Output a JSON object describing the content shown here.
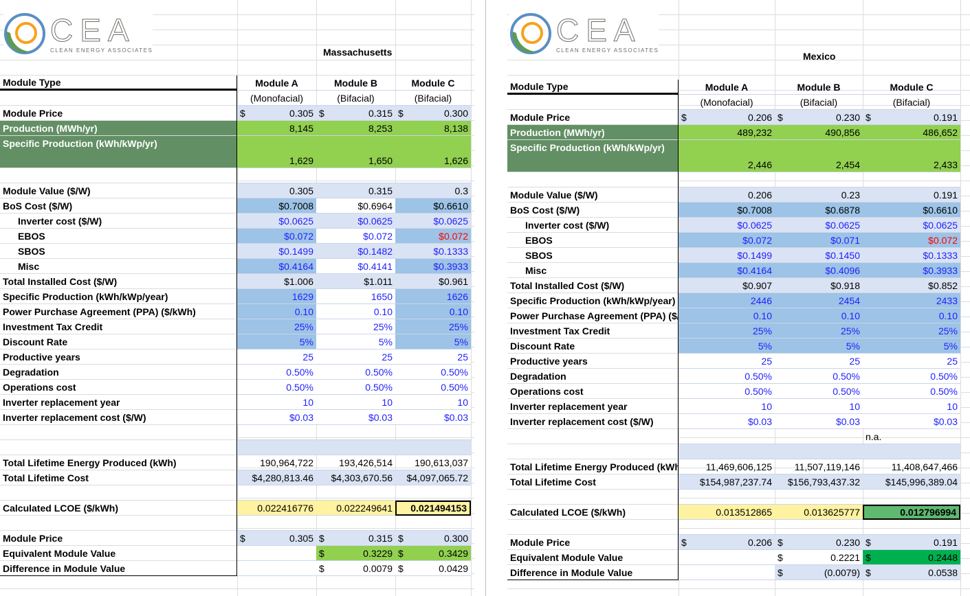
{
  "logo": {
    "name": "CEA",
    "tagline": "Clean Energy Associates"
  },
  "colors": {
    "light_blue": "#dae3f3",
    "mid_blue": "#9dc3e6",
    "green": "#92d050",
    "dark_green_label": "#628f64",
    "yellow": "#fff2a0",
    "best_lcoe_green": "#5fb96f",
    "bright_green": "#00b050",
    "input_blue_text": "#1f1fff",
    "red_text": "#ff0000"
  },
  "panels": [
    {
      "region": "Massachusetts",
      "rows": [
        {
          "label": "Module Type",
          "values": [
            "Module A",
            "Module B",
            "Module C"
          ]
        },
        {
          "label": "",
          "values": [
            "(Monofacial)",
            "(Bifacial)",
            "(Bifacial)"
          ]
        },
        {
          "label": "Module Price",
          "currency": "$",
          "values": [
            "0.305",
            "0.315",
            "0.300"
          ]
        },
        {
          "label": "Production (MWh/yr)",
          "values": [
            "8,145",
            "8,253",
            "8,138"
          ]
        },
        {
          "label": "Specific Production (kWh/kWp/yr)",
          "values": [
            "1,629",
            "1,650",
            "1,626"
          ]
        },
        {
          "label": "",
          "values": [
            "",
            "",
            ""
          ]
        },
        {
          "label": "Module Value ($/W)",
          "values": [
            "0.305",
            "0.315",
            "0.3"
          ]
        },
        {
          "label": "BoS Cost ($/W)",
          "values": [
            "$0.7008",
            "$0.6964",
            "$0.6610"
          ]
        },
        {
          "label": "Inverter cost ($/W)",
          "values": [
            "$0.0625",
            "$0.0625",
            "$0.0625"
          ]
        },
        {
          "label": "EBOS",
          "values": [
            "$0.072",
            "$0.072",
            "$0.072"
          ]
        },
        {
          "label": "SBOS",
          "values": [
            "$0.1499",
            "$0.1482",
            "$0.1333"
          ]
        },
        {
          "label": "Misc",
          "values": [
            "$0.4164",
            "$0.4141",
            "$0.3933"
          ]
        },
        {
          "label": "Total Installed Cost ($/W)",
          "values": [
            "$1.006",
            "$1.011",
            "$0.961"
          ]
        },
        {
          "label": "Specific Production (kWh/kWp/year)",
          "values": [
            "1629",
            "1650",
            "1626"
          ]
        },
        {
          "label": "Power Purchase Agreement (PPA) ($/kWh)",
          "values": [
            "0.10",
            "0.10",
            "0.10"
          ]
        },
        {
          "label": "Investment Tax Credit",
          "values": [
            "25%",
            "25%",
            "25%"
          ]
        },
        {
          "label": "Discount Rate",
          "values": [
            "5%",
            "5%",
            "5%"
          ]
        },
        {
          "label": "Productive years",
          "values": [
            "25",
            "25",
            "25"
          ]
        },
        {
          "label": "Degradation",
          "values": [
            "0.50%",
            "0.50%",
            "0.50%"
          ]
        },
        {
          "label": "Operations cost",
          "values": [
            "0.50%",
            "0.50%",
            "0.50%"
          ]
        },
        {
          "label": "Inverter replacement year",
          "values": [
            "10",
            "10",
            "10"
          ]
        },
        {
          "label": "Inverter replacement cost ($/W)",
          "values": [
            "$0.03",
            "$0.03",
            "$0.03"
          ]
        },
        {
          "label": "",
          "values": [
            "",
            "",
            ""
          ]
        },
        {
          "label": "",
          "values": [
            "",
            "",
            ""
          ]
        },
        {
          "label": "Total Lifetime Energy Produced (kWh)",
          "values": [
            "190,964,722",
            "193,426,514",
            "190,613,037"
          ]
        },
        {
          "label": "Total Lifetime Cost",
          "values": [
            "$4,280,813.46",
            "$4,303,670.56",
            "$4,097,065.72"
          ]
        },
        {
          "label": "",
          "values": [
            "",
            "",
            ""
          ]
        },
        {
          "label": "Calculated LCOE ($/kWh)",
          "values": [
            "0.022416776",
            "0.022249641",
            "0.021494153"
          ]
        },
        {
          "label": "",
          "values": [
            "",
            "",
            ""
          ]
        },
        {
          "label": "Module Price",
          "currency": "$",
          "values": [
            "0.305",
            "0.315",
            "0.300"
          ]
        },
        {
          "label": "Equivalent Module Value",
          "currency": "$",
          "values": [
            "",
            "0.3229",
            "0.3429"
          ]
        },
        {
          "label": "Difference in Module Value",
          "currency": "$",
          "values": [
            "",
            "0.0079",
            "0.0429"
          ]
        }
      ]
    },
    {
      "region": "Mexico",
      "rows": [
        {
          "label": "Module Type",
          "values": [
            "Module A",
            "Module B",
            "Module C"
          ]
        },
        {
          "label": "",
          "values": [
            "(Monofacial)",
            "(Bifacial)",
            "(Bifacial)"
          ]
        },
        {
          "label": "Module Price",
          "currency": "$",
          "values": [
            "0.206",
            "0.230",
            "0.191"
          ]
        },
        {
          "label": "Production (MWh/yr)",
          "values": [
            "489,232",
            "490,856",
            "486,652"
          ]
        },
        {
          "label": "Specific Production (kWh/kWp/yr)",
          "values": [
            "2,446",
            "2,454",
            "2,433"
          ]
        },
        {
          "label": "",
          "values": [
            "",
            "",
            ""
          ]
        },
        {
          "label": "Module Value ($/W)",
          "values": [
            "0.206",
            "0.23",
            "0.191"
          ]
        },
        {
          "label": "BoS Cost ($/W)",
          "values": [
            "$0.7008",
            "$0.6878",
            "$0.6610"
          ]
        },
        {
          "label": "Inverter cost ($/W)",
          "values": [
            "$0.0625",
            "$0.0625",
            "$0.0625"
          ]
        },
        {
          "label": "EBOS",
          "values": [
            "$0.072",
            "$0.071",
            "$0.072"
          ]
        },
        {
          "label": "SBOS",
          "values": [
            "$0.1499",
            "$0.1450",
            "$0.1333"
          ]
        },
        {
          "label": "Misc",
          "values": [
            "$0.4164",
            "$0.4096",
            "$0.3933"
          ]
        },
        {
          "label": "Total Installed Cost ($/W)",
          "values": [
            "$0.907",
            "$0.918",
            "$0.852"
          ]
        },
        {
          "label": "Specific Production (kWh/kWp/year)",
          "values": [
            "2446",
            "2454",
            "2433"
          ]
        },
        {
          "label": "Power Purchase Agreement (PPA) ($/kWh)",
          "values": [
            "0.10",
            "0.10",
            "0.10"
          ]
        },
        {
          "label": "Investment Tax Credit",
          "values": [
            "25%",
            "25%",
            "25%"
          ]
        },
        {
          "label": "Discount Rate",
          "values": [
            "5%",
            "5%",
            "5%"
          ]
        },
        {
          "label": "Productive years",
          "values": [
            "25",
            "25",
            "25"
          ]
        },
        {
          "label": "Degradation",
          "values": [
            "0.50%",
            "0.50%",
            "0.50%"
          ]
        },
        {
          "label": "Operations cost",
          "values": [
            "0.50%",
            "0.50%",
            "0.50%"
          ]
        },
        {
          "label": "Inverter replacement year",
          "values": [
            "10",
            "10",
            "10"
          ]
        },
        {
          "label": "Inverter replacement cost ($/W)",
          "values": [
            "$0.03",
            "$0.03",
            "$0.03"
          ]
        },
        {
          "label": "",
          "values": [
            "",
            "",
            "n.a."
          ]
        },
        {
          "label": "",
          "values": [
            "",
            "",
            ""
          ]
        },
        {
          "label": "Total Lifetime Energy Produced (kWh)",
          "values": [
            "11,469,606,125",
            "11,507,119,146",
            "11,408,647,466"
          ]
        },
        {
          "label": "Total Lifetime Cost",
          "values": [
            "$154,987,237.74",
            "$156,793,437.32",
            "$145,996,389.04"
          ]
        },
        {
          "label": "",
          "values": [
            "",
            "",
            ""
          ]
        },
        {
          "label": "Calculated LCOE ($/kWh)",
          "values": [
            "0.013512865",
            "0.013625777",
            "0.012796994"
          ]
        },
        {
          "label": "",
          "values": [
            "",
            "",
            ""
          ]
        },
        {
          "label": "Module Price",
          "currency": "$",
          "values": [
            "0.206",
            "0.230",
            "0.191"
          ]
        },
        {
          "label": "Equivalent Module Value",
          "currency": "$",
          "values": [
            "",
            "0.2221",
            "0.2448"
          ]
        },
        {
          "label": "Difference in Module Value",
          "currency": "$",
          "values": [
            "",
            "(0.0079)",
            "0.0538"
          ]
        }
      ]
    }
  ]
}
